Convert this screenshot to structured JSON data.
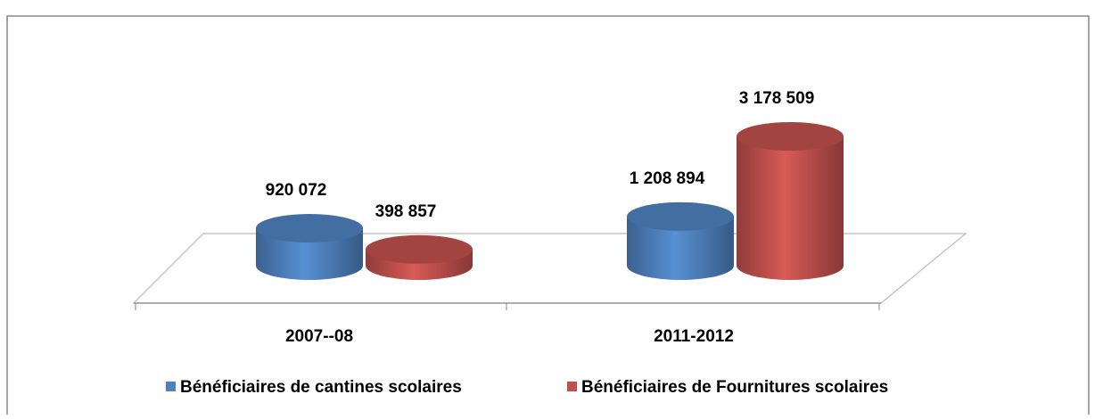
{
  "chart_data": {
    "type": "bar3d",
    "categories": [
      "2007--08",
      "2011-2012"
    ],
    "series": [
      {
        "name": "Bénéficiaires de cantines scolaires",
        "color": "#4f81bd",
        "values": [
          920072,
          1208894
        ],
        "value_labels": [
          "920 072",
          "1 208 894"
        ]
      },
      {
        "name": "Bénéficiaires de Fournitures scolaires",
        "color": "#c0504d",
        "values": [
          398857,
          3178509
        ],
        "value_labels": [
          "398 857",
          "3 178 509"
        ]
      }
    ],
    "legend": "bottom"
  }
}
